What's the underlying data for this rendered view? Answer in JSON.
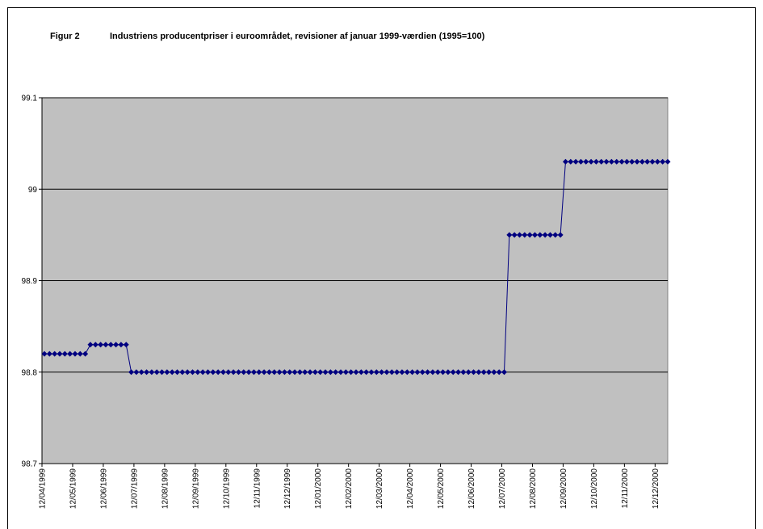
{
  "chart_data": {
    "type": "line",
    "label": "Figur 2",
    "title": "Industriens producentpriser i euroområdet, revisioner af januar 1999-værdien (1995=100)",
    "categories": [
      "12/04/1999",
      null,
      null,
      null,
      null,
      null,
      "12/05/1999",
      null,
      null,
      null,
      null,
      null,
      "12/06/1999",
      null,
      null,
      null,
      null,
      null,
      "12/07/1999",
      null,
      null,
      null,
      null,
      null,
      "12/08/1999",
      null,
      null,
      null,
      null,
      null,
      "12/09/1999",
      null,
      null,
      null,
      null,
      null,
      "12/10/1999",
      null,
      null,
      null,
      null,
      null,
      "12/11/1999",
      null,
      null,
      null,
      null,
      null,
      "12/12/1999",
      null,
      null,
      null,
      null,
      null,
      "12/01/2000",
      null,
      null,
      null,
      null,
      null,
      "12/02/2000",
      null,
      null,
      null,
      null,
      null,
      "12/03/2000",
      null,
      null,
      null,
      null,
      null,
      "12/04/2000",
      null,
      null,
      null,
      null,
      null,
      "12/05/2000",
      null,
      null,
      null,
      null,
      null,
      "12/06/2000",
      null,
      null,
      null,
      null,
      null,
      "12/07/2000",
      null,
      null,
      null,
      null,
      null,
      "12/08/2000",
      null,
      null,
      null,
      null,
      null,
      "12/09/2000",
      null,
      null,
      null,
      null,
      null,
      "12/10/2000",
      null,
      null,
      null,
      null,
      null,
      "12/11/2000",
      null,
      null,
      null,
      null,
      null,
      "12/12/2000",
      null,
      null
    ],
    "series": [
      {
        "color": "#000080",
        "values": [
          98.82,
          98.82,
          98.82,
          98.82,
          98.82,
          98.82,
          98.82,
          98.82,
          98.82,
          98.83,
          98.83,
          98.83,
          98.83,
          98.83,
          98.83,
          98.83,
          98.83,
          98.8,
          98.8,
          98.8,
          98.8,
          98.8,
          98.8,
          98.8,
          98.8,
          98.8,
          98.8,
          98.8,
          98.8,
          98.8,
          98.8,
          98.8,
          98.8,
          98.8,
          98.8,
          98.8,
          98.8,
          98.8,
          98.8,
          98.8,
          98.8,
          98.8,
          98.8,
          98.8,
          98.8,
          98.8,
          98.8,
          98.8,
          98.8,
          98.8,
          98.8,
          98.8,
          98.8,
          98.8,
          98.8,
          98.8,
          98.8,
          98.8,
          98.8,
          98.8,
          98.8,
          98.8,
          98.8,
          98.8,
          98.8,
          98.8,
          98.8,
          98.8,
          98.8,
          98.8,
          98.8,
          98.8,
          98.8,
          98.8,
          98.8,
          98.8,
          98.8,
          98.8,
          98.8,
          98.8,
          98.8,
          98.8,
          98.8,
          98.8,
          98.8,
          98.8,
          98.8,
          98.8,
          98.8,
          98.8,
          98.8,
          98.95,
          98.95,
          98.95,
          98.95,
          98.95,
          98.95,
          98.95,
          98.95,
          98.95,
          98.95,
          98.95,
          99.03,
          99.03,
          99.03,
          99.03,
          99.03,
          99.03,
          99.03,
          99.03,
          99.03,
          99.03,
          99.03,
          99.03,
          99.03,
          99.03,
          99.03,
          99.03,
          99.03,
          99.03,
          99.03,
          99.03,
          99.03
        ]
      }
    ],
    "ylim": [
      98.7,
      99.1
    ],
    "yticks": [
      98.7,
      98.8,
      98.9,
      99,
      99.1
    ],
    "grid": true
  }
}
